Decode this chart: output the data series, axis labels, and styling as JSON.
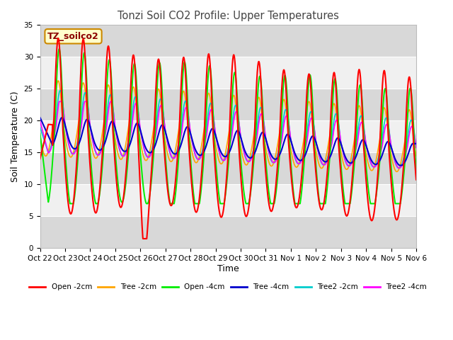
{
  "title": "Tonzi Soil CO2 Profile: Upper Temperatures",
  "xlabel": "Time",
  "ylabel": "Soil Temperature (C)",
  "ylim": [
    0,
    35
  ],
  "yticks": [
    0,
    5,
    10,
    15,
    20,
    25,
    30,
    35
  ],
  "x_labels": [
    "Oct 22",
    "Oct 23",
    "Oct 24",
    "Oct 25",
    "Oct 26",
    "Oct 27",
    "Oct 28",
    "Oct 29",
    "Oct 30",
    "Oct 31",
    "Nov 1",
    "Nov 2",
    "Nov 3",
    "Nov 4",
    "Nov 5",
    "Nov 6"
  ],
  "colors": {
    "Open -2cm": "#ff0000",
    "Tree -2cm": "#ffa500",
    "Open -4cm": "#00ee00",
    "Tree -4cm": "#0000cc",
    "Tree2 -2cm": "#00cccc",
    "Tree2 -4cm": "#ff00ff"
  },
  "legend_label": "TZ_soilco2",
  "background_color": "#ffffff",
  "plot_bg_light": "#f0f0f0",
  "plot_bg_dark": "#d8d8d8",
  "grid_color": "#ffffff",
  "n_days": 15,
  "points_per_day": 240,
  "figsize": [
    6.4,
    4.8
  ],
  "dpi": 100
}
